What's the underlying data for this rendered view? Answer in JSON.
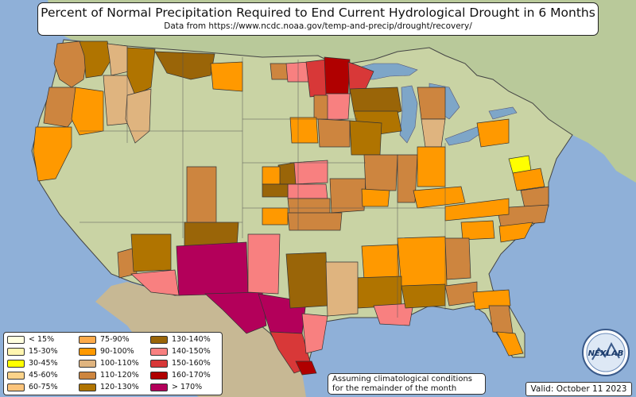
{
  "title": "Percent of Normal Precipitation Required to End Current Hydrological Drought in 6 Months",
  "subtitle": "Data from https://www.ncdc.noaa.gov/temp-and-precip/drought/recovery/",
  "legend": [
    {
      "label": "< 15%",
      "color": "#ffffe0"
    },
    {
      "label": "15-30%",
      "color": "#fff5b0"
    },
    {
      "label": "30-45%",
      "color": "#ffff00"
    },
    {
      "label": "45-60%",
      "color": "#fbd38a"
    },
    {
      "label": "60-75%",
      "color": "#fcc47c"
    },
    {
      "label": "75-90%",
      "color": "#fcaa4a"
    },
    {
      "label": "90-100%",
      "color": "#ff9900"
    },
    {
      "label": "100-110%",
      "color": "#dfb47f"
    },
    {
      "label": "110-120%",
      "color": "#cd853f"
    },
    {
      "label": "120-130%",
      "color": "#b07400"
    },
    {
      "label": "130-140%",
      "color": "#9a6508"
    },
    {
      "label": "140-150%",
      "color": "#f88080"
    },
    {
      "label": "150-160%",
      "color": "#d83838"
    },
    {
      "label": "160-170%",
      "color": "#b00000"
    },
    {
      "label": "> 170%",
      "color": "#b3005a"
    }
  ],
  "note": "Assuming climatological conditions for the remainder of the month",
  "valid": "Valid: October 11 2023",
  "logo_text": "NEXLAB",
  "colors": {
    "ocean": "#8fb0d8",
    "land": "#c9d3a4",
    "foreign_land": "#b9c99a",
    "great_lakes": "#7ea6c8"
  }
}
